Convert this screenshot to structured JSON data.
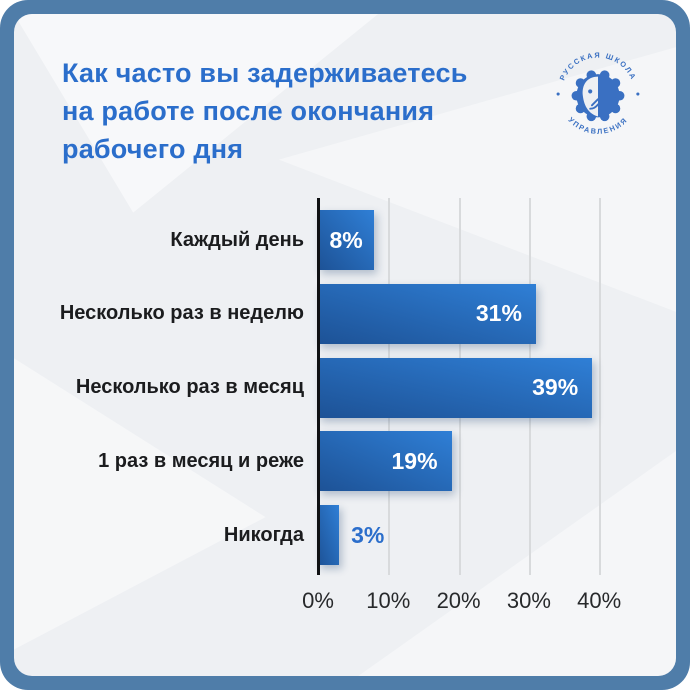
{
  "window": {
    "frame_color": "#4f7da9",
    "card_background": "#eef0f3"
  },
  "title": {
    "lines": [
      "Как часто вы задерживаетесь",
      "на работе после окончания",
      "рабочего дня"
    ],
    "color": "#2b6ecb"
  },
  "logo": {
    "top_text": "РУССКАЯ ШКОЛА",
    "bottom_text": "УПРАВЛЕНИЯ",
    "color": "#3a70c2"
  },
  "chart_data": {
    "type": "bar",
    "orientation": "horizontal",
    "title": "Как часто вы задерживаетесь на работе после окончания рабочего дня",
    "categories": [
      "Каждый день",
      "Несколько раз в неделю",
      "Несколько раз в месяц",
      "1 раз в месяц и реже",
      "Никогда"
    ],
    "values": [
      8,
      31,
      39,
      19,
      3
    ],
    "value_labels": [
      "8%",
      "31%",
      "39%",
      "19%",
      "3%"
    ],
    "value_label_placement": [
      "inside-center",
      "inside-right",
      "inside-right",
      "inside-right",
      "outside-right"
    ],
    "x_ticks": [
      "0%",
      "10%",
      "20%",
      "30%",
      "40%"
    ],
    "x_tick_values": [
      0,
      10,
      20,
      30,
      40
    ],
    "xlim": [
      0,
      40
    ],
    "grid": true,
    "legend": false,
    "bar_gradient": [
      "#1d5296",
      "#2f7fd6"
    ],
    "outside_label_color": "#2b6ecb",
    "axis_color": "#101113",
    "gridline_color": "#d8dadc"
  }
}
